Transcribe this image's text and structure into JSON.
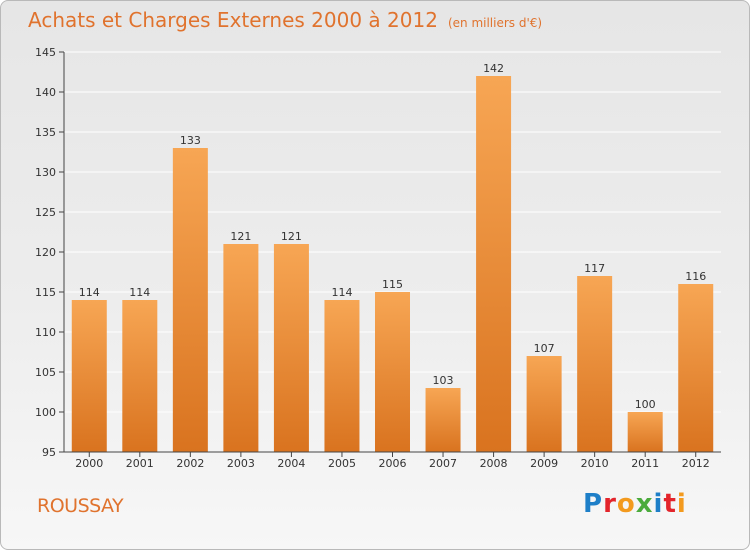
{
  "header": {
    "title": "Achats et Charges Externes 2000 à 2012",
    "subtitle": "(en milliers d'€)"
  },
  "footer": {
    "commune": "ROUSSAY",
    "brand": "Proxiti",
    "brand_colors": [
      "#1e7fc8",
      "#e3242b",
      "#f39a1e",
      "#4bab3c",
      "#1e7fc8",
      "#e3242b",
      "#f39a1e"
    ]
  },
  "colors": {
    "bar_light": "#f7a654",
    "bar_dark": "#d9731f",
    "text_accent": "#e0732e",
    "axis": "#444444",
    "grid": "#ffffff"
  },
  "chart_data": {
    "type": "bar",
    "categories": [
      "2000",
      "2001",
      "2002",
      "2003",
      "2004",
      "2005",
      "2006",
      "2007",
      "2008",
      "2009",
      "2010",
      "2011",
      "2012"
    ],
    "values": [
      114,
      114,
      133,
      121,
      121,
      114,
      115,
      103,
      142,
      107,
      117,
      100,
      116
    ],
    "ylim": [
      95,
      145
    ],
    "yticks": [
      95,
      100,
      105,
      110,
      115,
      120,
      125,
      130,
      135,
      140,
      145
    ],
    "grid": true,
    "data_labels": true
  }
}
